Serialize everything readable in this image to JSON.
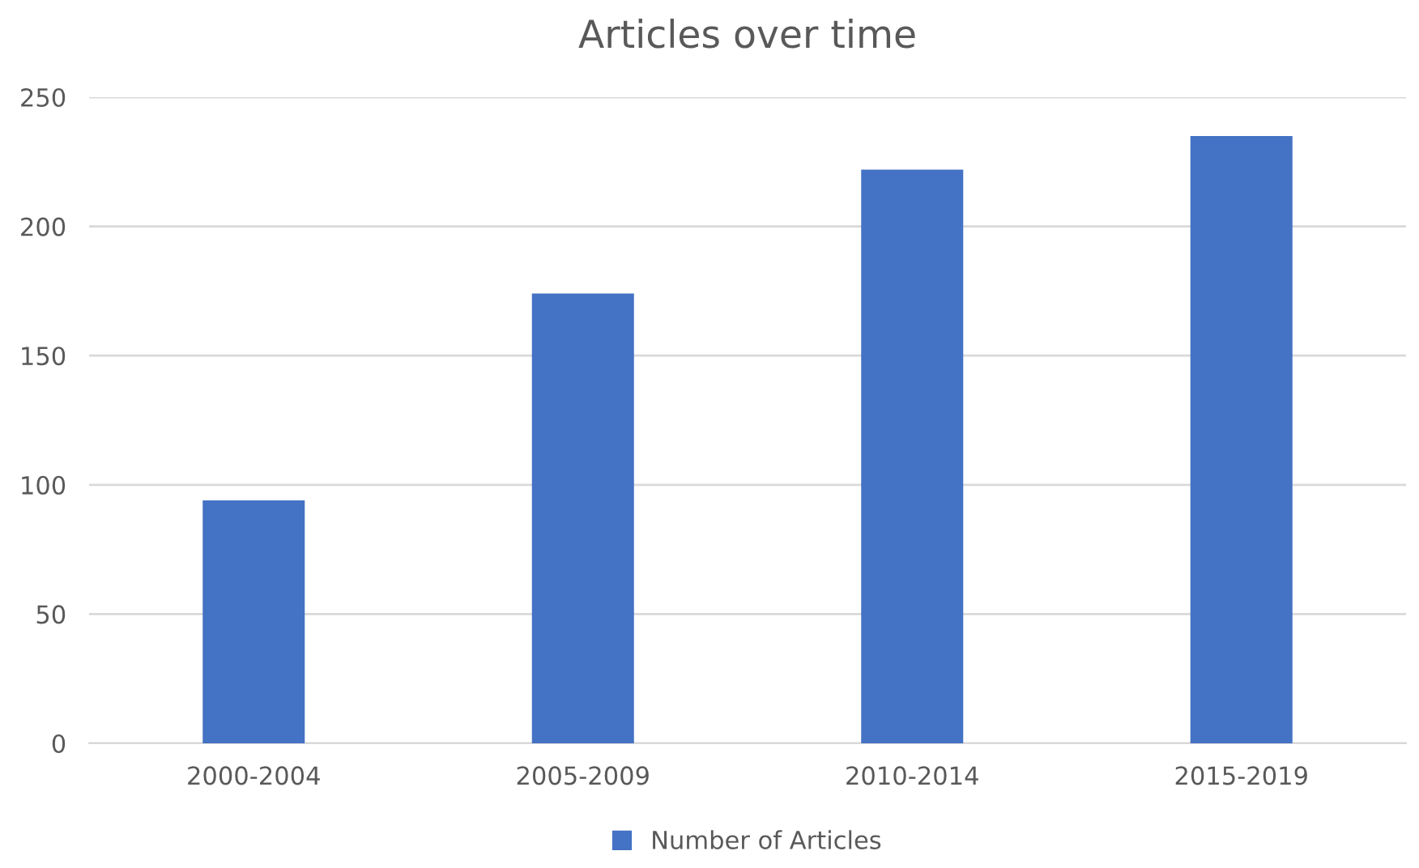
{
  "chart_data": {
    "type": "bar",
    "title": "Articles over time",
    "categories": [
      "2000-2004",
      "2005-2009",
      "2010-2014",
      "2015-2019"
    ],
    "series": [
      {
        "name": "Number of Articles",
        "color": "#4472c4",
        "values": [
          94,
          174,
          222,
          235
        ]
      }
    ],
    "ylim": [
      0,
      250
    ],
    "yticks": [
      0,
      50,
      100,
      150,
      200,
      250
    ],
    "grid": "y",
    "legend": "bottom"
  }
}
